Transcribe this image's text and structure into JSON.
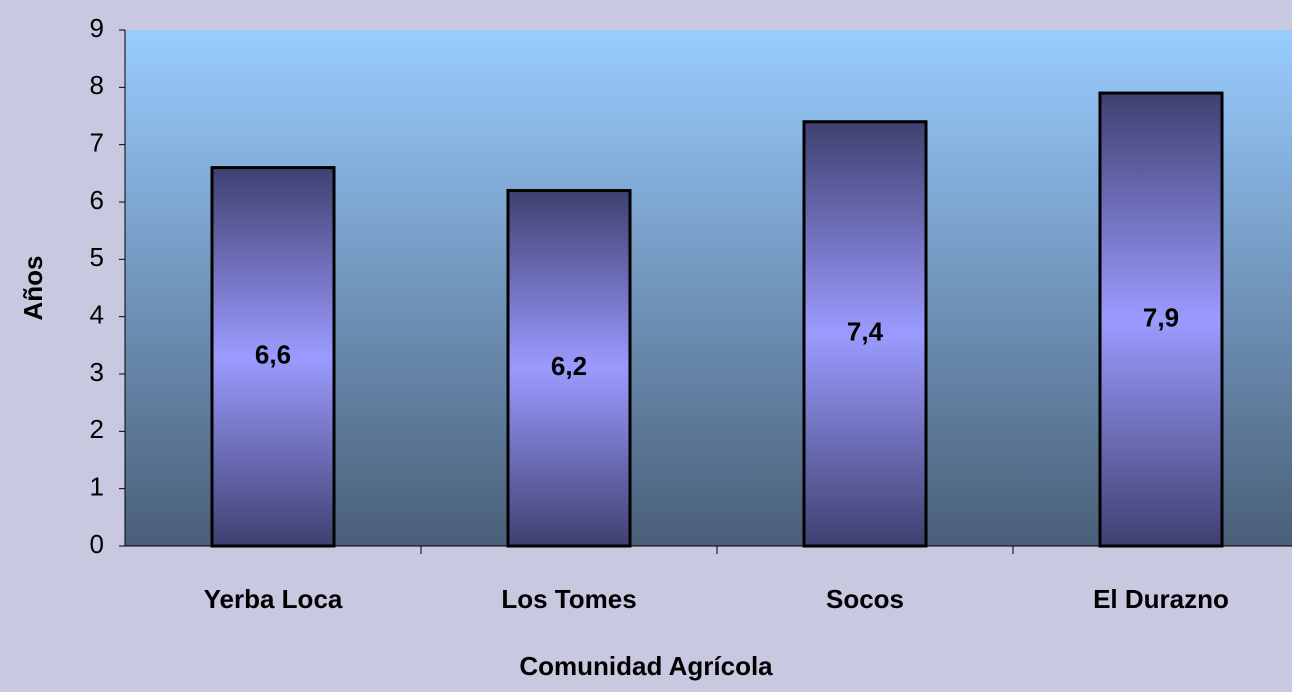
{
  "chart_data": {
    "type": "bar",
    "xlabel": "Comunidad Agrícola",
    "ylabel": "Años",
    "categories": [
      "Yerba Loca",
      "Los Tomes",
      "Socos",
      "El Durazno"
    ],
    "values": [
      6.6,
      6.2,
      7.4,
      7.9
    ],
    "value_labels": [
      "6,6",
      "6,2",
      "7,4",
      "7,9"
    ],
    "ylim": [
      0,
      9
    ],
    "yticks": [
      0,
      1,
      2,
      3,
      4,
      5,
      6,
      7,
      8,
      9
    ],
    "grid": false
  }
}
